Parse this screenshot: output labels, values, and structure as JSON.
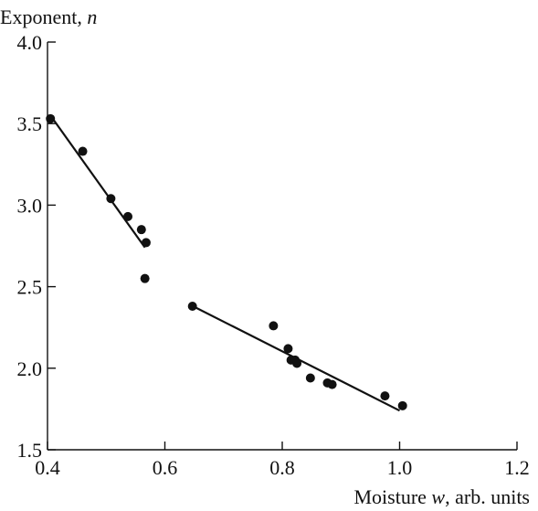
{
  "chart_data": {
    "type": "scatter",
    "title": "",
    "xlabel": "Moisture w, arb. units",
    "xlabel_parts": {
      "prefix": "Moisture ",
      "var": "w",
      "suffix": ", arb. units"
    },
    "ylabel": "Exponent, n",
    "ylabel_parts": {
      "prefix": "Exponent, ",
      "var": "n"
    },
    "xlim": [
      0.4,
      1.2
    ],
    "ylim": [
      1.5,
      4.0
    ],
    "xticks": [
      0.4,
      0.6,
      0.8,
      1.0,
      1.2
    ],
    "yticks": [
      1.5,
      2.0,
      2.5,
      3.0,
      3.5,
      4.0
    ],
    "xtick_labels": [
      "0.4",
      "0.6",
      "0.8",
      "1.0",
      "1.2"
    ],
    "ytick_labels": [
      "1.5",
      "2.0",
      "2.5",
      "3.0",
      "3.5",
      "4.0"
    ],
    "grid": false,
    "legend": "none",
    "series": [
      {
        "x": [
          0.405,
          0.46,
          0.508,
          0.537,
          0.56,
          0.568,
          0.566,
          0.647,
          0.785,
          0.81,
          0.815,
          0.822,
          0.825,
          0.848,
          0.877,
          0.885,
          0.975,
          1.005
        ],
        "y": [
          3.53,
          3.33,
          3.04,
          2.93,
          2.85,
          2.77,
          2.55,
          2.38,
          2.26,
          2.12,
          2.05,
          2.05,
          2.03,
          1.94,
          1.91,
          1.9,
          1.83,
          1.77
        ]
      }
    ],
    "fit_lines": [
      {
        "x": [
          0.405,
          0.566
        ],
        "y": [
          3.55,
          2.74
        ]
      },
      {
        "x": [
          0.648,
          1.0
        ],
        "y": [
          2.38,
          1.74
        ]
      }
    ],
    "colors": {
      "ink": "#111111"
    }
  }
}
